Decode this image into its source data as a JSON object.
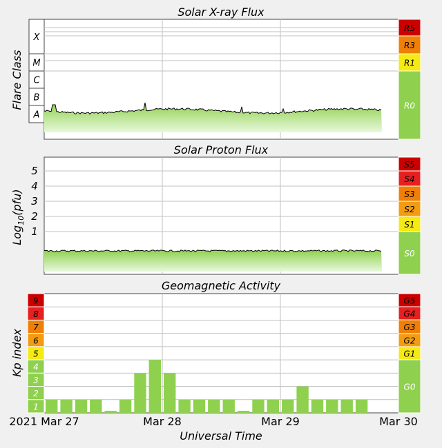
{
  "colors": {
    "background": "#f0f0f0",
    "plot_bg": "#ffffff",
    "green": "#8fd14f",
    "light_green": "#c8ecb0",
    "yellow": "#f5ea14",
    "orange": "#f39c12",
    "dark_orange": "#f07f07",
    "red": "#e62020",
    "dark_red": "#cc0000",
    "grid": "#c0c0c0",
    "line": "#000000"
  },
  "chart_data": [
    {
      "type": "area",
      "title": "Solar X-ray Flux",
      "ylabel": "Flare Class",
      "yticks": [
        "X",
        "M",
        "C",
        "B",
        "A"
      ],
      "scale_labels": [
        "R5",
        "R3",
        "R1",
        "R0"
      ],
      "x": [
        "2021 Mar 27",
        "Mar 28",
        "Mar 29",
        "Mar 30"
      ],
      "flux_level": "A",
      "grid": true
    },
    {
      "type": "area",
      "title": "Solar Proton Flux",
      "ylabel_base": "Log",
      "ylabel_sub": "10",
      "ylabel_unit": "(pfu)",
      "yticks": [
        "5",
        "4",
        "3",
        "2",
        "1"
      ],
      "ylim": [
        0,
        6
      ],
      "scale_labels": [
        "S5",
        "S4",
        "S3",
        "S2",
        "S1",
        "S0"
      ],
      "grid": true
    },
    {
      "type": "bar",
      "title": "Geomagnetic Activity",
      "ylabel": "Kp index",
      "yticks": [
        "9",
        "8",
        "7",
        "6",
        "5",
        "4",
        "3",
        "2",
        "1"
      ],
      "ylim": [
        0,
        9
      ],
      "scale_labels": [
        "G5",
        "G4",
        "G3",
        "G2",
        "G1",
        "G0"
      ],
      "values": [
        1,
        1,
        1,
        1,
        0.1,
        1,
        3,
        4,
        3,
        1,
        1,
        1,
        1,
        0.1,
        1,
        1,
        1,
        2,
        1,
        1,
        1,
        1
      ],
      "bar_starts_hours": [
        0,
        3,
        6,
        9,
        12,
        15,
        18,
        21,
        24,
        27,
        30,
        33,
        36,
        39,
        42,
        45,
        48,
        51,
        54,
        57,
        60,
        63
      ],
      "xlabel": "Universal Time",
      "xticks": [
        "2021 Mar 27",
        "Mar 28",
        "Mar 29",
        "Mar 30"
      ],
      "grid": true
    }
  ]
}
